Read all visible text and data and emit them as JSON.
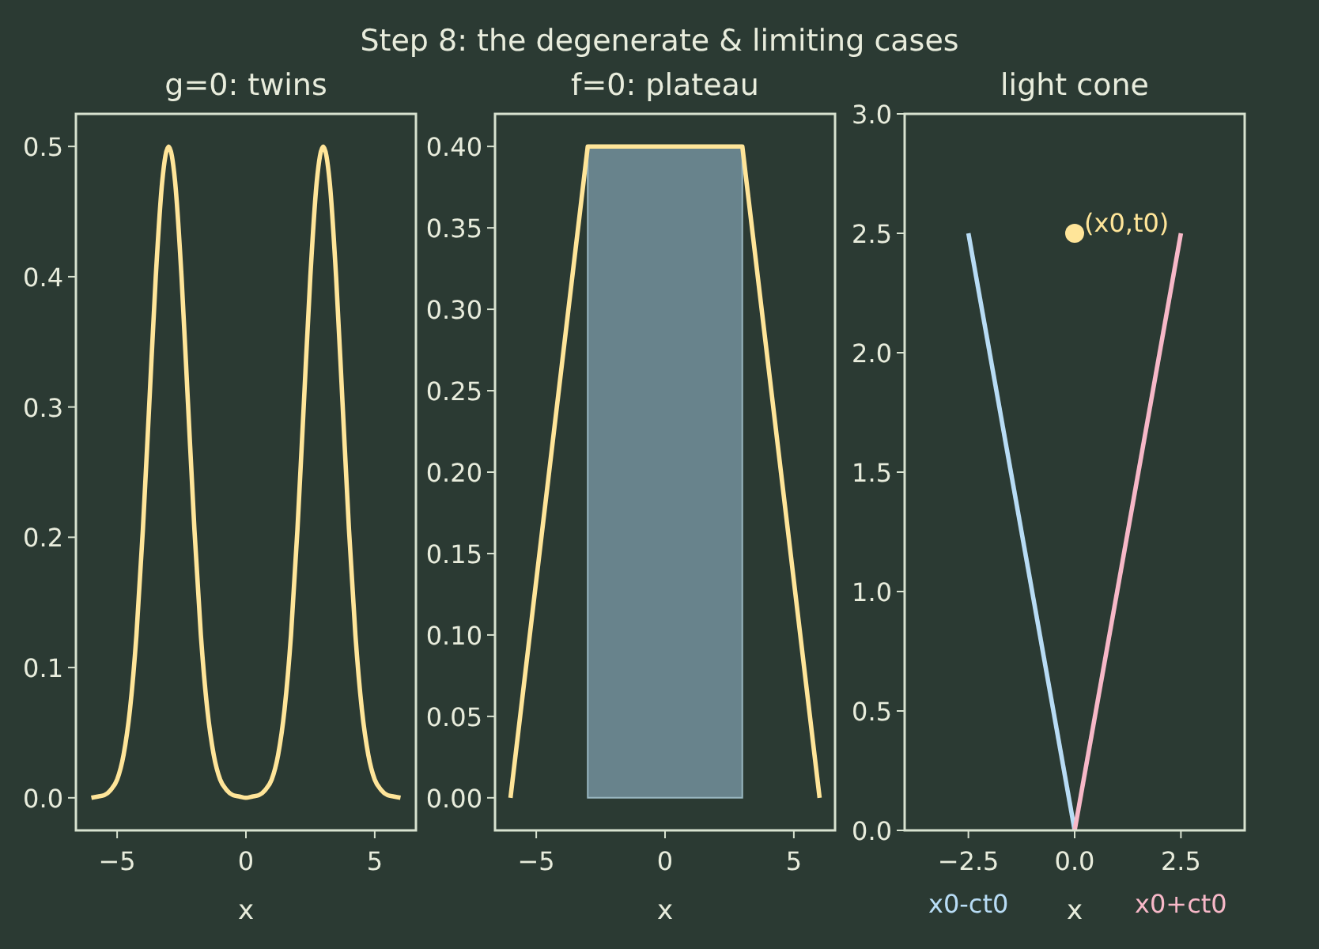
{
  "chart_data": [
    {
      "type": "line",
      "title": "g=0: twins",
      "xlabel": "x",
      "annotations": [
        "Step 8: the degenerate & limiting cases"
      ],
      "xlim": [
        -6.6,
        6.6
      ],
      "ylim": [
        -0.025,
        0.525
      ],
      "xticks": [
        {
          "value": -5,
          "label": "−5"
        },
        {
          "value": 0,
          "label": "0"
        },
        {
          "value": 5,
          "label": "5"
        }
      ],
      "yticks": [
        {
          "value": 0,
          "label": "0.0"
        },
        {
          "value": 0.1,
          "label": "0.1"
        },
        {
          "value": 0.2,
          "label": "0.2"
        },
        {
          "value": 0.3,
          "label": "0.3"
        },
        {
          "value": 0.4,
          "label": "0.4"
        },
        {
          "value": 0.5,
          "label": "0.5"
        }
      ],
      "grid": false,
      "series": [
        {
          "color": "#ffe599",
          "x": [
            -6,
            -5.75,
            -5.5,
            -5.25,
            -5,
            -4.75,
            -4.5,
            -4.25,
            -4,
            -3.75,
            -3.5,
            -3.25,
            -3,
            -2.75,
            -2.5,
            -2.25,
            -2,
            -1.75,
            -1.5,
            -1.25,
            -1,
            -0.75,
            -0.5,
            -0.25,
            0,
            0.25,
            0.5,
            0.75,
            1,
            1.25,
            1.5,
            1.75,
            2,
            2.25,
            2.5,
            2.75,
            3,
            3.25,
            3.5,
            3.75,
            4,
            4.25,
            4.5,
            4.75,
            5,
            5.25,
            5.5,
            5.75,
            6
          ],
          "values": [
            0,
            0.001,
            0.002,
            0.006,
            0.014,
            0.033,
            0.068,
            0.125,
            0.206,
            0.303,
            0.4,
            0.473,
            0.5,
            0.473,
            0.4,
            0.303,
            0.206,
            0.125,
            0.068,
            0.033,
            0.014,
            0.006,
            0.002,
            0.001,
            0,
            0.001,
            0.002,
            0.006,
            0.014,
            0.033,
            0.068,
            0.125,
            0.206,
            0.303,
            0.4,
            0.473,
            0.5,
            0.473,
            0.4,
            0.303,
            0.206,
            0.125,
            0.068,
            0.033,
            0.014,
            0.006,
            0.002,
            0.001,
            0
          ]
        }
      ]
    },
    {
      "type": "line",
      "title": "f=0: plateau",
      "xlabel": "x",
      "xlim": [
        -6.6,
        6.6
      ],
      "ylim": [
        -0.02,
        0.42
      ],
      "xticks": [
        {
          "value": -5,
          "label": "−5"
        },
        {
          "value": 0,
          "label": "0"
        },
        {
          "value": 5,
          "label": "5"
        }
      ],
      "yticks": [
        {
          "value": 0,
          "label": "0.00"
        },
        {
          "value": 0.05,
          "label": "0.05"
        },
        {
          "value": 0.1,
          "label": "0.10"
        },
        {
          "value": 0.15,
          "label": "0.15"
        },
        {
          "value": 0.2,
          "label": "0.20"
        },
        {
          "value": 0.25,
          "label": "0.25"
        },
        {
          "value": 0.3,
          "label": "0.30"
        },
        {
          "value": 0.35,
          "label": "0.35"
        },
        {
          "value": 0.4,
          "label": "0.40"
        }
      ],
      "grid": false,
      "series": [
        {
          "type": "area",
          "color": "#6f8c96",
          "x": [
            -3,
            3
          ],
          "values": [
            0.4,
            0.4
          ]
        },
        {
          "color": "#ffe599",
          "x": [
            -6,
            -3,
            3,
            6
          ],
          "values": [
            0,
            0.4,
            0.4,
            0
          ]
        }
      ]
    },
    {
      "type": "line",
      "title": "light cone",
      "xlabel": "x",
      "xlim": [
        -4,
        4
      ],
      "ylim": [
        0,
        3
      ],
      "xticks": [
        {
          "value": -2.5,
          "label": "−2.5"
        },
        {
          "value": 0,
          "label": "0.0"
        },
        {
          "value": 2.5,
          "label": "2.5"
        }
      ],
      "yticks": [
        {
          "value": 0,
          "label": "0.0"
        },
        {
          "value": 0.5,
          "label": "0.5"
        },
        {
          "value": 1,
          "label": "1.0"
        },
        {
          "value": 1.5,
          "label": "1.5"
        },
        {
          "value": 2,
          "label": "2.0"
        },
        {
          "value": 2.5,
          "label": "2.5"
        },
        {
          "value": 3,
          "label": "3.0"
        }
      ],
      "grid": false,
      "annotations": [
        {
          "text": "(x0,t0)",
          "x": 0,
          "y": 2.5
        }
      ],
      "series": [
        {
          "name": "x0-ct0",
          "color": "#b8dcf5",
          "x": [
            -2.5,
            0
          ],
          "values": [
            2.5,
            0
          ]
        },
        {
          "name": "x0+ct0",
          "color": "#f7b8c8",
          "x": [
            0,
            2.5
          ],
          "values": [
            0,
            2.5
          ]
        },
        {
          "type": "scatter",
          "marker": "circle",
          "color": "#ffe599",
          "x": [
            0
          ],
          "values": [
            2.5
          ]
        }
      ]
    }
  ]
}
